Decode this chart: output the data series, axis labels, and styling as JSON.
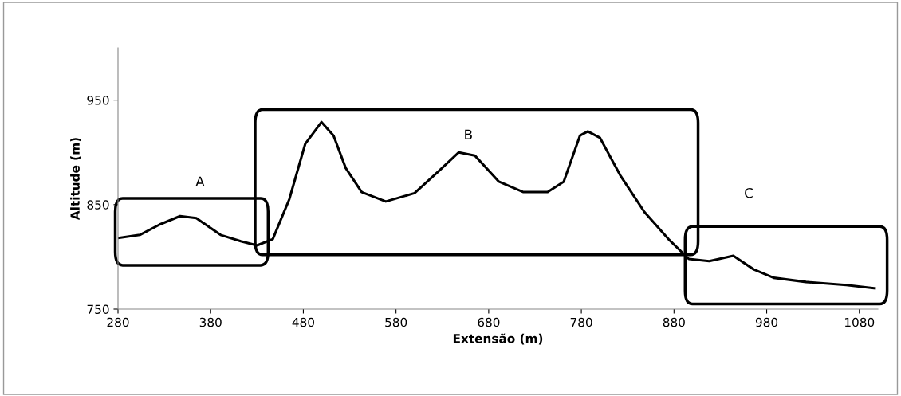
{
  "chart_data": {
    "type": "line",
    "xlabel": "Extensão (m)",
    "ylabel": "Altitude (m)",
    "x": [
      280,
      303.5,
      325,
      347,
      364.5,
      390.7,
      412.5,
      430,
      447,
      464.8,
      482,
      499.6,
      512.6,
      525.7,
      543,
      569,
      600,
      626,
      647.8,
      665,
      691,
      717.5,
      743.6,
      761,
      778.5,
      787,
      800,
      822,
      848,
      874,
      896,
      918,
      944,
      966,
      987.6,
      1022.5,
      1066,
      1096.5
    ],
    "series": [
      {
        "color": "#000000",
        "values": [
          818,
          821,
          831,
          839,
          837,
          821,
          815,
          811,
          817,
          855,
          908,
          929,
          916,
          885,
          862,
          853,
          861,
          882,
          900,
          897,
          872,
          862,
          862,
          872,
          916,
          920,
          914,
          878,
          843,
          817,
          798,
          796,
          801,
          788,
          780,
          776,
          773,
          770
        ]
      }
    ],
    "xlim": [
      280,
      1100
    ],
    "ylim": [
      750,
      1000
    ],
    "xticks": [
      280,
      380,
      480,
      580,
      680,
      780,
      880,
      980,
      1080
    ],
    "yticks": [
      750,
      850,
      950
    ],
    "grid": false,
    "legend": false,
    "marker": "none",
    "line_style": "solid",
    "annotations": [
      "A",
      "B",
      "C"
    ]
  }
}
